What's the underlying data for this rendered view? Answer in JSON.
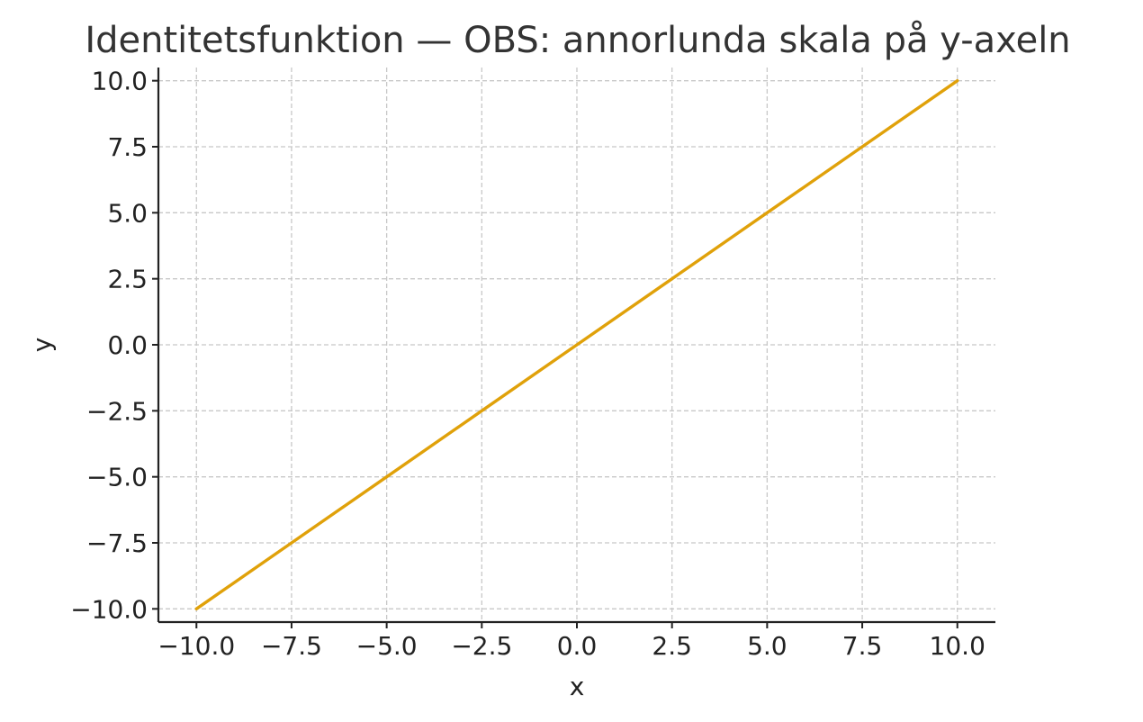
{
  "chart_data": {
    "type": "line",
    "title": "Identitetsfunktion — OBS: annorlunda skala på y-axeln",
    "xlabel": "x",
    "ylabel": "y",
    "xlim": [
      -11,
      11
    ],
    "ylim": [
      -10.5,
      10.5
    ],
    "x_ticks": [
      -10,
      -7.5,
      -5,
      -2.5,
      0,
      2.5,
      5,
      7.5,
      10
    ],
    "x_tick_labels": [
      "−10.0",
      "−7.5",
      "−5.0",
      "−2.5",
      "0.0",
      "2.5",
      "5.0",
      "7.5",
      "10.0"
    ],
    "y_ticks": [
      -10,
      -7.5,
      -5,
      -2.5,
      0,
      2.5,
      5,
      7.5,
      10
    ],
    "y_tick_labels": [
      "−10.0",
      "−7.5",
      "−5.0",
      "−2.5",
      "0.0",
      "2.5",
      "5.0",
      "7.5",
      "10.0"
    ],
    "grid": true,
    "legend": "none",
    "series": [
      {
        "color": "#e0a10a",
        "x": [
          -10,
          -7.5,
          -5,
          -2.5,
          0,
          2.5,
          5,
          7.5,
          10
        ],
        "y": [
          -10,
          -7.5,
          -5,
          -2.5,
          0,
          2.5,
          5,
          7.5,
          10
        ]
      }
    ]
  }
}
